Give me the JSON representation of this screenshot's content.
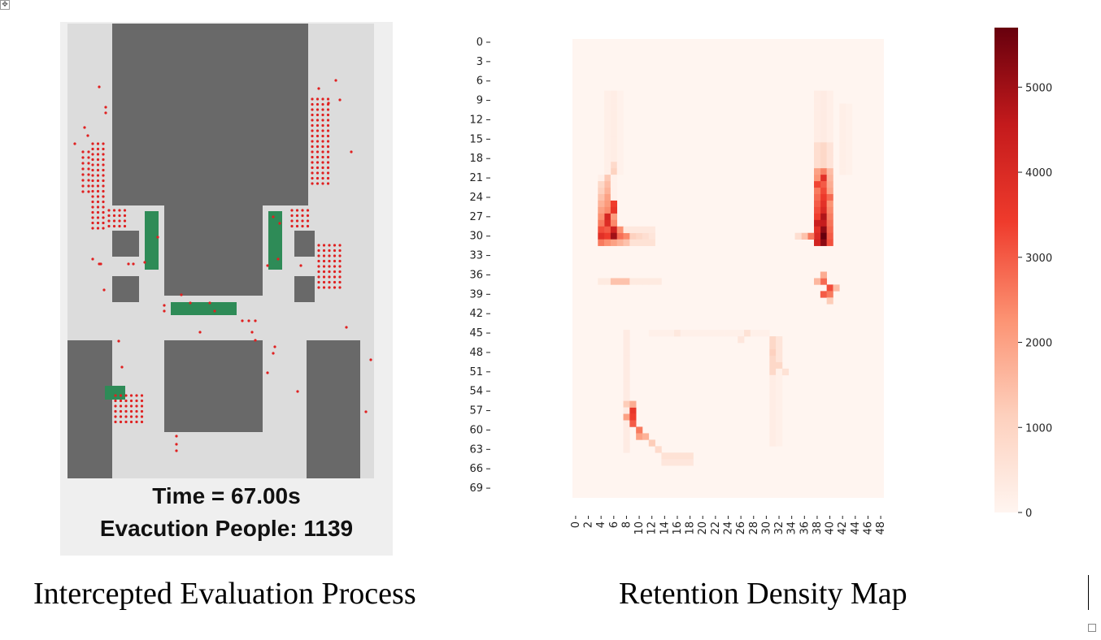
{
  "left_panel": {
    "time_text": "Time = 67.00s",
    "count_text": "Evacution People: 1139",
    "caption": "Intercepted Evaluation Process",
    "colors": {
      "floor": "#dcdcdc",
      "wall": "#696969",
      "obstacle": "#2e8b57",
      "person": "#e02020",
      "frame": "#efefef"
    }
  },
  "right_panel": {
    "caption": "Retention Density Map",
    "heatmap": {
      "y_ticks": [
        "0",
        "3",
        "6",
        "9",
        "12",
        "15",
        "18",
        "21",
        "24",
        "27",
        "30",
        "33",
        "36",
        "39",
        "42",
        "45",
        "48",
        "51",
        "54",
        "57",
        "60",
        "63",
        "66",
        "69"
      ],
      "x_ticks": [
        "0",
        "2",
        "4",
        "6",
        "8",
        "10",
        "12",
        "14",
        "16",
        "18",
        "20",
        "22",
        "24",
        "26",
        "28",
        "30",
        "32",
        "34",
        "36",
        "38",
        "40",
        "42",
        "44",
        "46",
        "48"
      ],
      "colorbar_ticks": [
        "0",
        "1000",
        "2000",
        "3000",
        "4000",
        "5000"
      ],
      "colormap": "Reds",
      "value_range": [
        0,
        5700
      ]
    }
  },
  "chart_data": {
    "type": "heatmap",
    "title": "",
    "xlabel": "",
    "ylabel": "",
    "x_range": [
      0,
      49
    ],
    "y_range": [
      0,
      71
    ],
    "colorbar_range": [
      0,
      5700
    ],
    "hotspots": [
      {
        "row": 30,
        "col": 6,
        "value": 5000
      },
      {
        "row": 27,
        "col": 5,
        "value": 4100
      },
      {
        "row": 30,
        "col": 39,
        "value": 5700
      },
      {
        "row": 27,
        "col": 39,
        "value": 4800
      },
      {
        "row": 21,
        "col": 39,
        "value": 3800
      },
      {
        "row": 38,
        "col": 40,
        "value": 3200
      },
      {
        "row": 57,
        "col": 9,
        "value": 3600
      },
      {
        "row": 60,
        "col": 10,
        "value": 2600
      }
    ]
  }
}
